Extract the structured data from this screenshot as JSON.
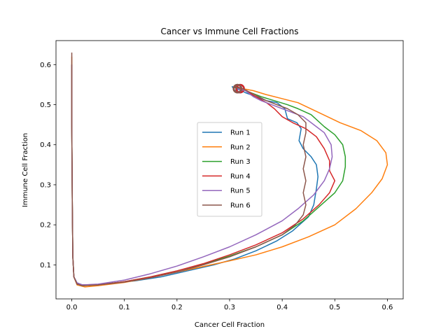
{
  "chart_data": {
    "type": "line",
    "title": "Cancer vs Immune Cell Fractions",
    "xlabel": "Cancer Cell Fraction",
    "ylabel": "Immune Cell Fraction",
    "xlim": [
      -0.03,
      0.63
    ],
    "ylim": [
      0.015,
      0.66
    ],
    "xticks": [
      0.0,
      0.1,
      0.2,
      0.3,
      0.4,
      0.5,
      0.6
    ],
    "xtick_labels": [
      "0.0",
      "0.1",
      "0.2",
      "0.3",
      "0.4",
      "0.5",
      "0.6"
    ],
    "yticks": [
      0.1,
      0.2,
      0.3,
      0.4,
      0.5,
      0.6
    ],
    "ytick_labels": [
      "0.1",
      "0.2",
      "0.3",
      "0.4",
      "0.5",
      "0.6"
    ],
    "grid": false,
    "legend_position": "center",
    "series": [
      {
        "name": "Run 1",
        "color": "#1f77b4",
        "points": [
          [
            0.0,
            0.6
          ],
          [
            0.0,
            0.45
          ],
          [
            0.001,
            0.25
          ],
          [
            0.002,
            0.12
          ],
          [
            0.004,
            0.07
          ],
          [
            0.01,
            0.055
          ],
          [
            0.02,
            0.05
          ],
          [
            0.04,
            0.05
          ],
          [
            0.08,
            0.055
          ],
          [
            0.12,
            0.06
          ],
          [
            0.17,
            0.07
          ],
          [
            0.22,
            0.085
          ],
          [
            0.27,
            0.1
          ],
          [
            0.31,
            0.115
          ],
          [
            0.35,
            0.135
          ],
          [
            0.39,
            0.16
          ],
          [
            0.42,
            0.185
          ],
          [
            0.45,
            0.22
          ],
          [
            0.46,
            0.25
          ],
          [
            0.465,
            0.29
          ],
          [
            0.468,
            0.32
          ],
          [
            0.465,
            0.35
          ],
          [
            0.455,
            0.37
          ],
          [
            0.44,
            0.39
          ],
          [
            0.432,
            0.41
          ],
          [
            0.436,
            0.44
          ],
          [
            0.428,
            0.455
          ],
          [
            0.41,
            0.465
          ],
          [
            0.405,
            0.49
          ],
          [
            0.39,
            0.505
          ],
          [
            0.37,
            0.51
          ],
          [
            0.35,
            0.52
          ],
          [
            0.33,
            0.53
          ],
          [
            0.315,
            0.54
          ],
          [
            0.305,
            0.545
          ],
          [
            0.31,
            0.535
          ],
          [
            0.32,
            0.54
          ]
        ]
      },
      {
        "name": "Run 2",
        "color": "#ff7f0e",
        "points": [
          [
            0.0,
            0.62
          ],
          [
            0.0,
            0.45
          ],
          [
            0.001,
            0.25
          ],
          [
            0.002,
            0.12
          ],
          [
            0.004,
            0.07
          ],
          [
            0.01,
            0.05
          ],
          [
            0.025,
            0.045
          ],
          [
            0.05,
            0.048
          ],
          [
            0.1,
            0.056
          ],
          [
            0.15,
            0.068
          ],
          [
            0.2,
            0.082
          ],
          [
            0.25,
            0.096
          ],
          [
            0.3,
            0.11
          ],
          [
            0.35,
            0.125
          ],
          [
            0.4,
            0.145
          ],
          [
            0.45,
            0.17
          ],
          [
            0.5,
            0.2
          ],
          [
            0.54,
            0.24
          ],
          [
            0.57,
            0.28
          ],
          [
            0.59,
            0.315
          ],
          [
            0.6,
            0.35
          ],
          [
            0.597,
            0.38
          ],
          [
            0.58,
            0.41
          ],
          [
            0.55,
            0.435
          ],
          [
            0.51,
            0.455
          ],
          [
            0.47,
            0.48
          ],
          [
            0.43,
            0.505
          ],
          [
            0.4,
            0.515
          ],
          [
            0.37,
            0.525
          ],
          [
            0.345,
            0.535
          ],
          [
            0.325,
            0.54
          ],
          [
            0.31,
            0.545
          ],
          [
            0.315,
            0.54
          ]
        ]
      },
      {
        "name": "Run 3",
        "color": "#2ca02c",
        "points": [
          [
            0.0,
            0.6
          ],
          [
            0.0,
            0.45
          ],
          [
            0.001,
            0.25
          ],
          [
            0.002,
            0.12
          ],
          [
            0.004,
            0.07
          ],
          [
            0.01,
            0.052
          ],
          [
            0.02,
            0.048
          ],
          [
            0.05,
            0.05
          ],
          [
            0.1,
            0.058
          ],
          [
            0.15,
            0.07
          ],
          [
            0.2,
            0.085
          ],
          [
            0.25,
            0.102
          ],
          [
            0.3,
            0.122
          ],
          [
            0.35,
            0.145
          ],
          [
            0.4,
            0.175
          ],
          [
            0.44,
            0.21
          ],
          [
            0.47,
            0.245
          ],
          [
            0.5,
            0.28
          ],
          [
            0.515,
            0.31
          ],
          [
            0.52,
            0.345
          ],
          [
            0.52,
            0.37
          ],
          [
            0.515,
            0.4
          ],
          [
            0.5,
            0.425
          ],
          [
            0.48,
            0.445
          ],
          [
            0.455,
            0.475
          ],
          [
            0.43,
            0.49
          ],
          [
            0.41,
            0.5
          ],
          [
            0.385,
            0.51
          ],
          [
            0.36,
            0.52
          ],
          [
            0.34,
            0.53
          ],
          [
            0.32,
            0.54
          ],
          [
            0.308,
            0.545
          ],
          [
            0.315,
            0.54
          ]
        ]
      },
      {
        "name": "Run 4",
        "color": "#d62728",
        "points": [
          [
            0.0,
            0.6
          ],
          [
            0.0,
            0.45
          ],
          [
            0.001,
            0.25
          ],
          [
            0.002,
            0.12
          ],
          [
            0.004,
            0.07
          ],
          [
            0.01,
            0.052
          ],
          [
            0.02,
            0.05
          ],
          [
            0.05,
            0.05
          ],
          [
            0.1,
            0.058
          ],
          [
            0.15,
            0.07
          ],
          [
            0.2,
            0.085
          ],
          [
            0.25,
            0.103
          ],
          [
            0.3,
            0.125
          ],
          [
            0.35,
            0.15
          ],
          [
            0.4,
            0.18
          ],
          [
            0.44,
            0.215
          ],
          [
            0.47,
            0.25
          ],
          [
            0.49,
            0.28
          ],
          [
            0.5,
            0.31
          ],
          [
            0.49,
            0.335
          ],
          [
            0.49,
            0.36
          ],
          [
            0.48,
            0.39
          ],
          [
            0.465,
            0.42
          ],
          [
            0.445,
            0.44
          ],
          [
            0.42,
            0.455
          ],
          [
            0.4,
            0.47
          ],
          [
            0.385,
            0.49
          ],
          [
            0.37,
            0.505
          ],
          [
            0.35,
            0.52
          ],
          [
            0.33,
            0.535
          ],
          [
            0.315,
            0.545
          ],
          [
            0.32,
            0.54
          ]
        ]
      },
      {
        "name": "Run 5",
        "color": "#9467bd",
        "points": [
          [
            0.0,
            0.6
          ],
          [
            0.0,
            0.45
          ],
          [
            0.001,
            0.25
          ],
          [
            0.002,
            0.12
          ],
          [
            0.004,
            0.07
          ],
          [
            0.01,
            0.055
          ],
          [
            0.02,
            0.05
          ],
          [
            0.05,
            0.052
          ],
          [
            0.1,
            0.062
          ],
          [
            0.15,
            0.078
          ],
          [
            0.2,
            0.097
          ],
          [
            0.25,
            0.12
          ],
          [
            0.3,
            0.145
          ],
          [
            0.35,
            0.175
          ],
          [
            0.4,
            0.21
          ],
          [
            0.43,
            0.24
          ],
          [
            0.46,
            0.275
          ],
          [
            0.48,
            0.31
          ],
          [
            0.49,
            0.34
          ],
          [
            0.495,
            0.37
          ],
          [
            0.493,
            0.4
          ],
          [
            0.48,
            0.43
          ],
          [
            0.46,
            0.45
          ],
          [
            0.44,
            0.47
          ],
          [
            0.42,
            0.48
          ],
          [
            0.4,
            0.49
          ],
          [
            0.38,
            0.5
          ],
          [
            0.36,
            0.51
          ],
          [
            0.345,
            0.52
          ],
          [
            0.33,
            0.535
          ],
          [
            0.315,
            0.54
          ]
        ]
      },
      {
        "name": "Run 6",
        "color": "#8c564b",
        "points": [
          [
            0.0,
            0.63
          ],
          [
            0.0,
            0.45
          ],
          [
            0.001,
            0.25
          ],
          [
            0.002,
            0.12
          ],
          [
            0.004,
            0.07
          ],
          [
            0.01,
            0.052
          ],
          [
            0.02,
            0.048
          ],
          [
            0.05,
            0.05
          ],
          [
            0.1,
            0.057
          ],
          [
            0.15,
            0.068
          ],
          [
            0.2,
            0.082
          ],
          [
            0.25,
            0.1
          ],
          [
            0.3,
            0.12
          ],
          [
            0.35,
            0.145
          ],
          [
            0.4,
            0.175
          ],
          [
            0.425,
            0.2
          ],
          [
            0.44,
            0.225
          ],
          [
            0.445,
            0.25
          ],
          [
            0.44,
            0.28
          ],
          [
            0.445,
            0.31
          ],
          [
            0.44,
            0.34
          ],
          [
            0.445,
            0.37
          ],
          [
            0.44,
            0.4
          ],
          [
            0.445,
            0.43
          ],
          [
            0.445,
            0.455
          ],
          [
            0.43,
            0.475
          ],
          [
            0.41,
            0.49
          ],
          [
            0.39,
            0.5
          ],
          [
            0.37,
            0.51
          ],
          [
            0.355,
            0.52
          ],
          [
            0.34,
            0.53
          ],
          [
            0.325,
            0.54
          ],
          [
            0.31,
            0.545
          ],
          [
            0.315,
            0.54
          ]
        ]
      }
    ]
  }
}
